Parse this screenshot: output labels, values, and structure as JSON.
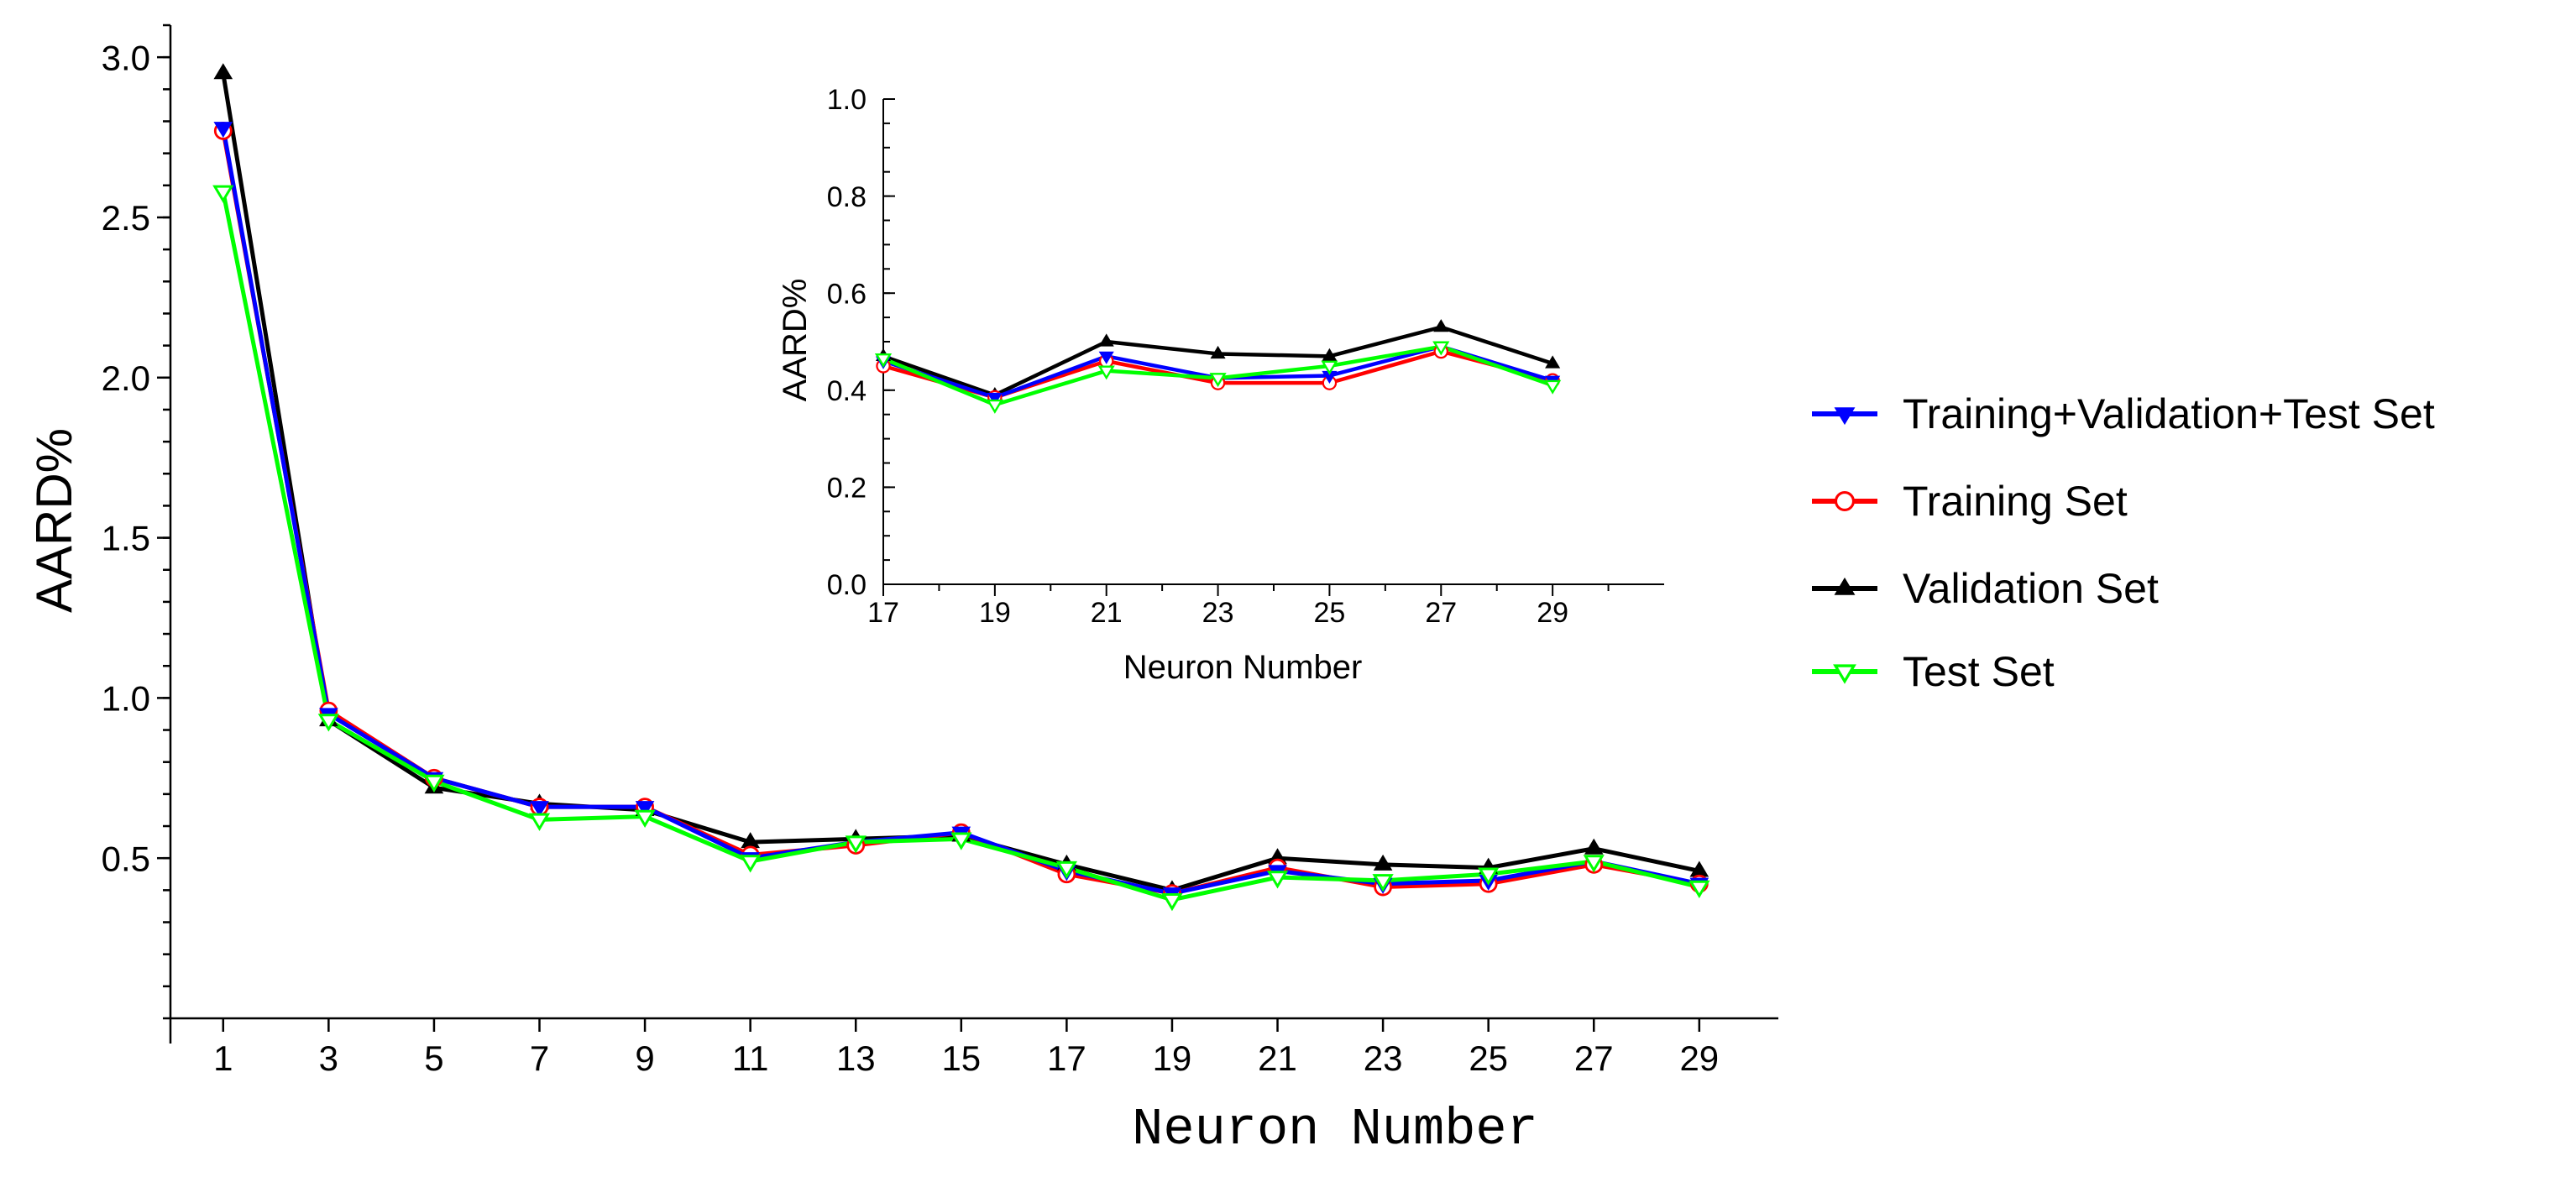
{
  "chart_data": [
    {
      "type": "line",
      "role": "main",
      "xlabel": "Neuron Number",
      "ylabel": "AARD%",
      "xlim": [
        0,
        30.5
      ],
      "ylim": [
        0,
        3.1
      ],
      "x_ticks": [
        1,
        3,
        5,
        7,
        9,
        11,
        13,
        15,
        17,
        19,
        21,
        23,
        25,
        27,
        29
      ],
      "y_ticks": [
        0.5,
        1.0,
        1.5,
        2.0,
        2.5,
        3.0
      ],
      "y_tick_labels": [
        "0.5",
        "1.0",
        "1.5",
        "2.0",
        "2.5",
        "3.0"
      ],
      "x": [
        1,
        3,
        5,
        7,
        9,
        11,
        13,
        15,
        17,
        19,
        21,
        23,
        25,
        27,
        29
      ],
      "series": [
        {
          "name": "Training+Validation+Test Set",
          "color": "#0000ff",
          "marker": "triangle-down-filled",
          "values": [
            2.78,
            0.95,
            0.75,
            0.66,
            0.66,
            0.5,
            0.55,
            0.58,
            0.46,
            0.39,
            0.46,
            0.42,
            0.43,
            0.49,
            0.42
          ]
        },
        {
          "name": "Training Set",
          "color": "#ff0000",
          "marker": "circle-open",
          "values": [
            2.77,
            0.96,
            0.75,
            0.66,
            0.66,
            0.51,
            0.54,
            0.58,
            0.45,
            0.39,
            0.47,
            0.41,
            0.42,
            0.48,
            0.42
          ]
        },
        {
          "name": "Validation Set",
          "color": "#000000",
          "marker": "triangle-up-filled",
          "values": [
            2.95,
            0.93,
            0.72,
            0.67,
            0.65,
            0.55,
            0.56,
            0.57,
            0.48,
            0.4,
            0.5,
            0.48,
            0.47,
            0.53,
            0.46
          ]
        },
        {
          "name": "Test Set",
          "color": "#00ff00",
          "marker": "triangle-down-open",
          "values": [
            2.58,
            0.93,
            0.74,
            0.62,
            0.63,
            0.49,
            0.55,
            0.56,
            0.47,
            0.37,
            0.44,
            0.43,
            0.45,
            0.49,
            0.41
          ]
        }
      ]
    },
    {
      "type": "line",
      "role": "inset",
      "xlabel": "Neuron Number",
      "ylabel": "AARD%",
      "xlim": [
        17,
        31
      ],
      "ylim": [
        0,
        1.0
      ],
      "x_ticks": [
        17,
        19,
        21,
        23,
        25,
        27,
        29
      ],
      "y_ticks": [
        0.0,
        0.2,
        0.4,
        0.6,
        0.8,
        1.0
      ],
      "y_tick_labels": [
        "0.0",
        "0.2",
        "0.4",
        "0.6",
        "0.8",
        "1.0"
      ],
      "x": [
        17,
        19,
        21,
        23,
        25,
        27,
        29
      ],
      "series": [
        {
          "name": "Training+Validation+Test Set",
          "color": "#0000ff",
          "marker": "triangle-down-filled",
          "values": [
            0.46,
            0.385,
            0.47,
            0.425,
            0.43,
            0.49,
            0.42
          ]
        },
        {
          "name": "Training Set",
          "color": "#ff0000",
          "marker": "circle-open",
          "values": [
            0.45,
            0.385,
            0.46,
            0.415,
            0.415,
            0.48,
            0.42
          ]
        },
        {
          "name": "Validation Set",
          "color": "#000000",
          "marker": "triangle-up-filled",
          "values": [
            0.47,
            0.39,
            0.5,
            0.475,
            0.47,
            0.53,
            0.455
          ]
        },
        {
          "name": "Test Set",
          "color": "#00ff00",
          "marker": "triangle-down-open",
          "values": [
            0.465,
            0.37,
            0.44,
            0.425,
            0.45,
            0.49,
            0.41
          ]
        }
      ]
    }
  ],
  "legend": {
    "position": "right",
    "items": [
      {
        "label": "Training+Validation+Test Set",
        "color": "#0000ff",
        "marker": "triangle-down-filled"
      },
      {
        "label": "Training Set",
        "color": "#ff0000",
        "marker": "circle-open"
      },
      {
        "label": "Validation Set",
        "color": "#000000",
        "marker": "triangle-up-filled"
      },
      {
        "label": "Test Set",
        "color": "#00ff00",
        "marker": "triangle-down-open"
      }
    ]
  }
}
